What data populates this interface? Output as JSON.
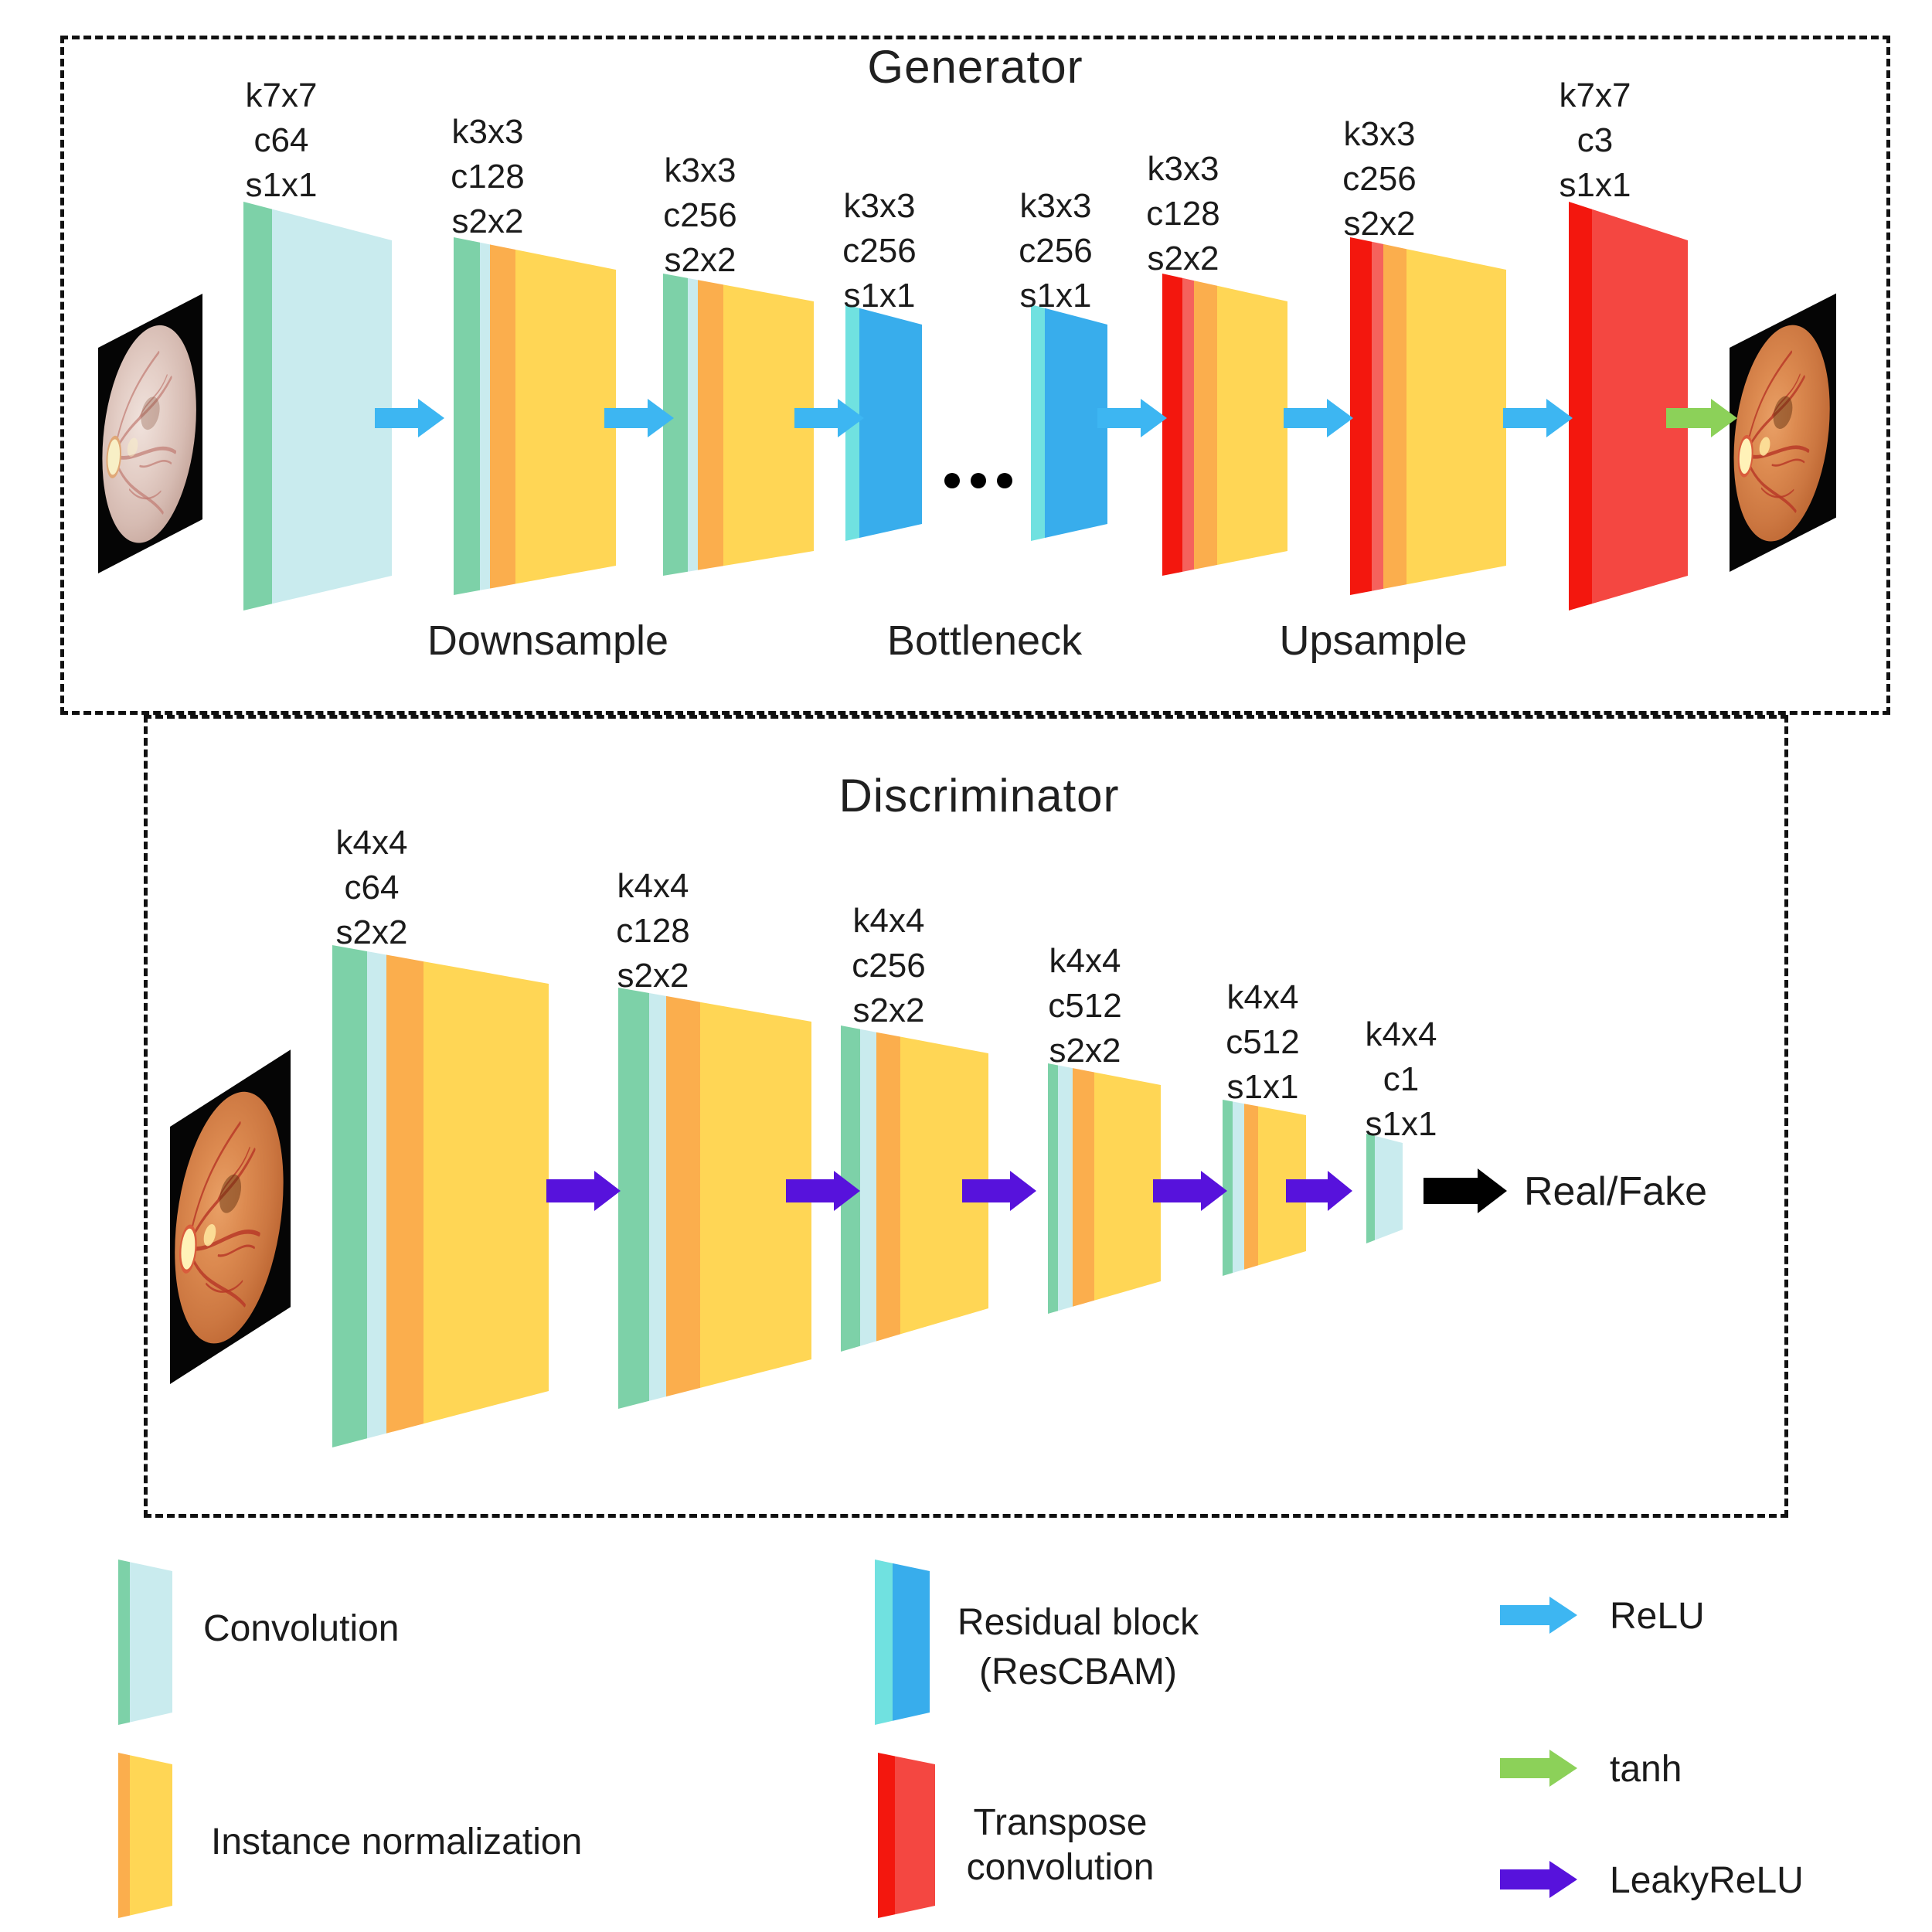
{
  "generator": {
    "title": "Generator",
    "sections": [
      "Downsample",
      "Bottleneck",
      "Upsample"
    ],
    "blocks": [
      {
        "name": "input-convolution",
        "lines": [
          "k7x7",
          "c64",
          "s1x1"
        ]
      },
      {
        "name": "downsample-1",
        "lines": [
          "k3x3",
          "c128",
          "s2x2"
        ]
      },
      {
        "name": "downsample-2",
        "lines": [
          "k3x3",
          "c256",
          "s2x2"
        ]
      },
      {
        "name": "residual-block-1",
        "lines": [
          "k3x3",
          "c256",
          "s1x1"
        ]
      },
      {
        "name": "residual-block-2",
        "lines": [
          "k3x3",
          "c256",
          "s1x1"
        ]
      },
      {
        "name": "upsample-1",
        "lines": [
          "k3x3",
          "c128",
          "s2x2"
        ]
      },
      {
        "name": "upsample-2",
        "lines": [
          "k3x3",
          "c256",
          "s2x2"
        ]
      },
      {
        "name": "output-convolution",
        "lines": [
          "k7x7",
          "c3",
          "s1x1"
        ]
      }
    ]
  },
  "discriminator": {
    "title": "Discriminator",
    "output_label": "Real/Fake",
    "blocks": [
      {
        "name": "conv-1",
        "lines": [
          "k4x4",
          "c64",
          "s2x2"
        ]
      },
      {
        "name": "conv-2",
        "lines": [
          "k4x4",
          "c128",
          "s2x2"
        ]
      },
      {
        "name": "conv-3",
        "lines": [
          "k4x4",
          "c256",
          "s2x2"
        ]
      },
      {
        "name": "conv-4",
        "lines": [
          "k4x4",
          "c512",
          "s2x2"
        ]
      },
      {
        "name": "conv-5",
        "lines": [
          "k4x4",
          "c512",
          "s1x1"
        ]
      },
      {
        "name": "conv-6",
        "lines": [
          "k4x4",
          "c1",
          "s1x1"
        ]
      }
    ]
  },
  "legend": {
    "blocks": [
      {
        "name": "convolution",
        "label_lines": [
          "Convolution"
        ]
      },
      {
        "name": "instance-normalization",
        "label_lines": [
          "Instance normalization"
        ]
      },
      {
        "name": "residual-block",
        "label_lines": [
          "Residual block",
          "(ResCBAM)"
        ]
      },
      {
        "name": "transpose-convolution",
        "label_lines": [
          "Transpose",
          "convolution"
        ]
      }
    ],
    "activations": [
      {
        "name": "relu",
        "label": "ReLU",
        "color": "#3DB6F2"
      },
      {
        "name": "tanh",
        "label": "tanh",
        "color": "#8CD159"
      },
      {
        "name": "leaky-relu",
        "label": "LeakyReLU",
        "color": "#5712DC"
      }
    ]
  },
  "colors": {
    "convolution_edge": "#7DD1A8",
    "convolution_body": "#C9EBEE",
    "instance_norm_edge": "#FBAE4D",
    "instance_norm_body": "#FFD655",
    "residual_edge": "#70E1E0",
    "residual_body": "#38ADEC",
    "transpose_edge": "#F3170E",
    "transpose_body": "#F44741",
    "relu_arrow": "#3DB6F2",
    "tanh_arrow": "#8CD159",
    "leaky_relu_arrow": "#5712DC",
    "output_arrow": "#000000"
  }
}
